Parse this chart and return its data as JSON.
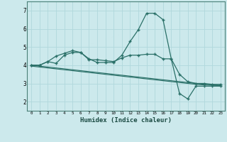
{
  "xlabel": "Humidex (Indice chaleur)",
  "bg_color": "#cce9ec",
  "grid_color": "#b0d8dc",
  "line_color": "#2a7068",
  "xlim": [
    -0.5,
    23.5
  ],
  "ylim": [
    1.5,
    7.5
  ],
  "xticks": [
    0,
    1,
    2,
    3,
    4,
    5,
    6,
    7,
    8,
    9,
    10,
    11,
    12,
    13,
    14,
    15,
    16,
    17,
    18,
    19,
    20,
    21,
    22,
    23
  ],
  "yticks": [
    2,
    3,
    4,
    5,
    6,
    7
  ],
  "curve1_x": [
    0,
    1,
    2,
    3,
    4,
    5,
    6,
    7,
    8,
    9,
    10,
    11,
    12,
    13,
    14,
    15,
    16,
    17,
    18,
    19,
    20,
    21,
    22,
    23
  ],
  "curve1_y": [
    4.0,
    4.0,
    4.2,
    4.1,
    4.55,
    4.7,
    4.7,
    4.35,
    4.15,
    4.15,
    4.15,
    4.55,
    5.3,
    5.95,
    6.85,
    6.85,
    6.5,
    4.35,
    2.45,
    2.15,
    2.85,
    2.85,
    2.85,
    2.85
  ],
  "curve2_x": [
    0,
    1,
    2,
    3,
    4,
    5,
    6,
    7,
    8,
    9,
    10,
    11,
    12,
    13,
    14,
    15,
    16,
    17,
    18,
    19,
    20,
    21,
    22,
    23
  ],
  "curve2_y": [
    4.0,
    4.0,
    4.2,
    4.5,
    4.65,
    4.8,
    4.7,
    4.3,
    4.3,
    4.25,
    4.2,
    4.4,
    4.55,
    4.55,
    4.6,
    4.6,
    4.35,
    4.35,
    3.5,
    3.1,
    3.0,
    3.0,
    2.95,
    2.95
  ],
  "curve3_x": [
    0,
    1,
    2,
    3,
    4,
    5,
    6,
    7,
    8,
    9,
    10,
    11,
    12,
    13,
    14,
    15,
    16,
    17,
    18,
    19,
    20,
    21,
    22,
    23
  ],
  "curve3_y": [
    3.95,
    3.9,
    3.85,
    3.8,
    3.75,
    3.7,
    3.65,
    3.6,
    3.55,
    3.5,
    3.45,
    3.4,
    3.35,
    3.3,
    3.25,
    3.2,
    3.15,
    3.1,
    3.05,
    3.0,
    2.95,
    2.92,
    2.9,
    2.88
  ],
  "curve4_x": [
    0,
    1,
    2,
    3,
    4,
    5,
    6,
    7,
    8,
    9,
    10,
    11,
    12,
    13,
    14,
    15,
    16,
    17,
    18,
    19,
    20,
    21,
    22,
    23
  ],
  "curve4_y": [
    4.0,
    3.95,
    3.9,
    3.85,
    3.8,
    3.75,
    3.7,
    3.65,
    3.6,
    3.55,
    3.5,
    3.45,
    3.4,
    3.35,
    3.3,
    3.25,
    3.2,
    3.15,
    3.1,
    3.05,
    3.0,
    2.95,
    2.92,
    2.9
  ]
}
